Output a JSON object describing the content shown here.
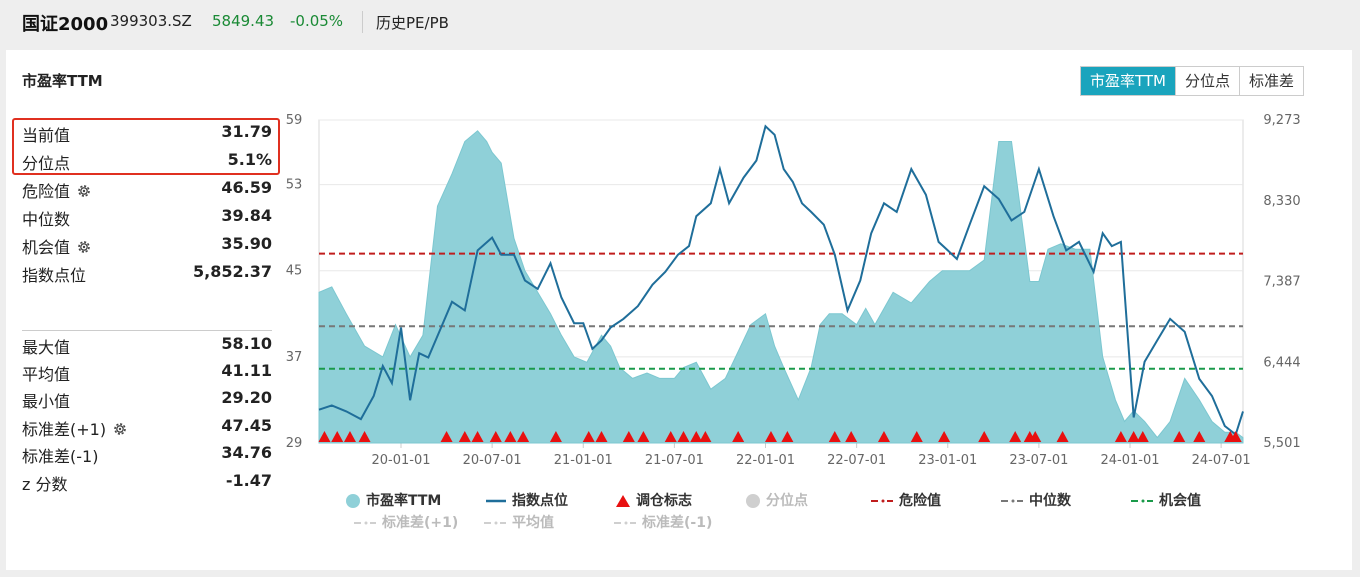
{
  "header": {
    "name": "国证2000",
    "code": "399303.SZ",
    "price": "5849.43",
    "change": "-0.05%",
    "history_link": "历史PE/PB"
  },
  "card": {
    "title": "市盈率TTM",
    "tabs": [
      {
        "label": "市盈率TTM",
        "active": true
      },
      {
        "label": "分位点",
        "active": false
      },
      {
        "label": "标准差",
        "active": false
      }
    ]
  },
  "stats_top": [
    {
      "label": "当前值",
      "value": "31.79",
      "gear": false
    },
    {
      "label": "分位点",
      "value": "5.1%",
      "gear": false
    },
    {
      "label": "危险值",
      "value": "46.59",
      "gear": true
    },
    {
      "label": "中位数",
      "value": "39.84",
      "gear": false
    },
    {
      "label": "机会值",
      "value": "35.90",
      "gear": true
    },
    {
      "label": "指数点位",
      "value": "5,852.37",
      "gear": false
    }
  ],
  "stats_bottom": [
    {
      "label": "最大值",
      "value": "58.10",
      "gear": false
    },
    {
      "label": "平均值",
      "value": "41.11",
      "gear": false
    },
    {
      "label": "最小值",
      "value": "29.20",
      "gear": false
    },
    {
      "label": "标准差(+1)",
      "value": "47.45",
      "gear": true
    },
    {
      "label": "标准差(-1)",
      "value": "34.76",
      "gear": true
    },
    {
      "label": "z 分数",
      "value": "-1.47",
      "gear": false
    }
  ],
  "colors": {
    "accent": "#1aa4bd",
    "pe_fill": "#8fd0d8",
    "index_line": "#1f6e9a",
    "danger": "#c01d1d",
    "median": "#777777",
    "opportunity": "#1a9a4a",
    "marker": "#e81010",
    "highlight_box": "#e03020",
    "positive_green": "#1a8a35"
  },
  "chart_data": {
    "type": "area",
    "xlabel": "",
    "ylabel": "",
    "left_axis": {
      "min": 29,
      "max": 59,
      "ticks": [
        "59",
        "53",
        "45",
        "37",
        "29"
      ]
    },
    "right_axis": {
      "min": 5501,
      "max": 9273,
      "ticks": [
        "9,273",
        "8,330",
        "7,387",
        "6,444",
        "5,501"
      ]
    },
    "x_ticks": [
      "20-01-01",
      "20-07-01",
      "21-01-01",
      "21-07-01",
      "22-01-01",
      "22-07-01",
      "23-01-01",
      "23-07-01",
      "24-01-01",
      "24-07-01"
    ],
    "grid": "horizontal",
    "legend_position": "bottom",
    "reference_lines": [
      {
        "name": "危险值",
        "value": 46.59
      },
      {
        "name": "中位数",
        "value": 39.84
      },
      {
        "name": "机会值",
        "value": 35.9
      }
    ],
    "series": [
      {
        "name": "市盈率TTM",
        "axis": "left",
        "x": [
          2019.55,
          2019.62,
          2019.7,
          2019.8,
          2019.9,
          2019.97,
          2020.05,
          2020.12,
          2020.2,
          2020.28,
          2020.35,
          2020.42,
          2020.47,
          2020.5,
          2020.55,
          2020.62,
          2020.68,
          2020.75,
          2020.82,
          2020.88,
          2020.95,
          2021.02,
          2021.1,
          2021.15,
          2021.2,
          2021.27,
          2021.35,
          2021.42,
          2021.5,
          2021.55,
          2021.62,
          2021.7,
          2021.78,
          2021.85,
          2021.92,
          2022.0,
          2022.05,
          2022.1,
          2022.18,
          2022.25,
          2022.3,
          2022.35,
          2022.42,
          2022.5,
          2022.55,
          2022.6,
          2022.7,
          2022.8,
          2022.9,
          2022.97,
          2023.05,
          2023.12,
          2023.2,
          2023.28,
          2023.35,
          2023.42,
          2023.45,
          2023.5,
          2023.55,
          2023.62,
          2023.7,
          2023.78,
          2023.85,
          2023.92,
          2023.97,
          2024.02,
          2024.08,
          2024.15,
          2024.22,
          2024.3,
          2024.38,
          2024.45,
          2024.52,
          2024.58,
          2024.62
        ],
        "values": [
          43,
          43.5,
          41,
          38,
          37,
          40,
          37,
          39,
          51,
          54,
          57,
          58,
          57,
          56,
          55,
          48,
          45,
          43,
          41,
          39,
          37,
          36.5,
          39,
          38,
          36,
          35,
          35.5,
          35,
          35,
          36,
          36.5,
          34,
          35,
          37.5,
          40,
          41,
          38,
          36,
          33,
          36,
          40,
          41,
          41,
          40,
          41.5,
          40,
          43,
          42,
          44,
          45,
          45,
          45,
          46,
          57,
          57,
          48,
          44,
          44,
          47,
          47.5,
          47,
          47,
          37,
          33,
          31,
          32,
          31,
          29.5,
          31,
          35,
          33,
          31,
          30,
          30,
          29.5
        ]
      },
      {
        "name": "指数点位",
        "axis": "right",
        "x": [
          2019.55,
          2019.62,
          2019.7,
          2019.78,
          2019.85,
          2019.9,
          2019.95,
          2020.0,
          2020.05,
          2020.1,
          2020.15,
          2020.22,
          2020.28,
          2020.35,
          2020.42,
          2020.5,
          2020.55,
          2020.62,
          2020.68,
          2020.75,
          2020.82,
          2020.88,
          2020.95,
          2021.0,
          2021.05,
          2021.1,
          2021.15,
          2021.22,
          2021.3,
          2021.38,
          2021.45,
          2021.52,
          2021.58,
          2021.62,
          2021.7,
          2021.75,
          2021.8,
          2021.88,
          2021.95,
          2022.0,
          2022.05,
          2022.1,
          2022.15,
          2022.2,
          2022.25,
          2022.32,
          2022.38,
          2022.45,
          2022.52,
          2022.58,
          2022.65,
          2022.72,
          2022.8,
          2022.88,
          2022.95,
          2023.0,
          2023.05,
          2023.12,
          2023.2,
          2023.28,
          2023.35,
          2023.42,
          2023.5,
          2023.58,
          2023.65,
          2023.72,
          2023.8,
          2023.85,
          2023.9,
          2023.95,
          2024.02,
          2024.08,
          2024.15,
          2024.22,
          2024.3,
          2024.38,
          2024.45,
          2024.52,
          2024.58,
          2024.62
        ],
        "values": [
          5890,
          5940,
          5870,
          5780,
          6050,
          6400,
          6200,
          6850,
          6000,
          6550,
          6500,
          6850,
          7150,
          7050,
          7750,
          7900,
          7700,
          7700,
          7400,
          7300,
          7600,
          7200,
          6900,
          6900,
          6600,
          6700,
          6850,
          6950,
          7100,
          7350,
          7500,
          7700,
          7800,
          8150,
          8300,
          8700,
          8300,
          8600,
          8800,
          9200,
          9100,
          8700,
          8550,
          8300,
          8200,
          8050,
          7700,
          7050,
          7400,
          7950,
          8300,
          8200,
          8700,
          8400,
          7850,
          7750,
          7650,
          8050,
          8500,
          8350,
          8100,
          8200,
          8700,
          8150,
          7750,
          7850,
          7500,
          7950,
          7800,
          7850,
          5800,
          6450,
          6700,
          6950,
          6800,
          6250,
          6050,
          5700,
          5600,
          5870
        ]
      }
    ],
    "markers": {
      "name": "调仓标志",
      "x": [
        2019.58,
        2019.65,
        2019.72,
        2019.8,
        2020.25,
        2020.35,
        2020.42,
        2020.52,
        2020.6,
        2020.67,
        2020.85,
        2021.03,
        2021.1,
        2021.25,
        2021.33,
        2021.48,
        2021.55,
        2021.62,
        2021.67,
        2021.85,
        2022.03,
        2022.12,
        2022.38,
        2022.47,
        2022.65,
        2022.83,
        2022.98,
        2023.2,
        2023.37,
        2023.45,
        2023.48,
        2023.63,
        2023.95,
        2024.02,
        2024.07,
        2024.27,
        2024.38,
        2024.55,
        2024.58
      ]
    },
    "legend_dimmed": [
      "分位点",
      "标准差(+1)",
      "平均值",
      "标准差(-1)"
    ]
  },
  "legend": [
    {
      "label": "市盈率TTM",
      "sym": "circle-teal"
    },
    {
      "label": "指数点位",
      "sym": "line-blue"
    },
    {
      "label": "调仓标志",
      "sym": "triangle-red"
    },
    {
      "label": "分位点",
      "sym": "circle-gray"
    },
    {
      "label": "危险值",
      "sym": "dash-red"
    },
    {
      "label": "中位数",
      "sym": "dash-gray"
    },
    {
      "label": "机会值",
      "sym": "dash-green"
    },
    {
      "label": "标准差(+1)",
      "sym": "dash-lightgray"
    },
    {
      "label": "平均值",
      "sym": "dash-lightgray"
    },
    {
      "label": "标准差(-1)",
      "sym": "dash-lightgray"
    }
  ]
}
